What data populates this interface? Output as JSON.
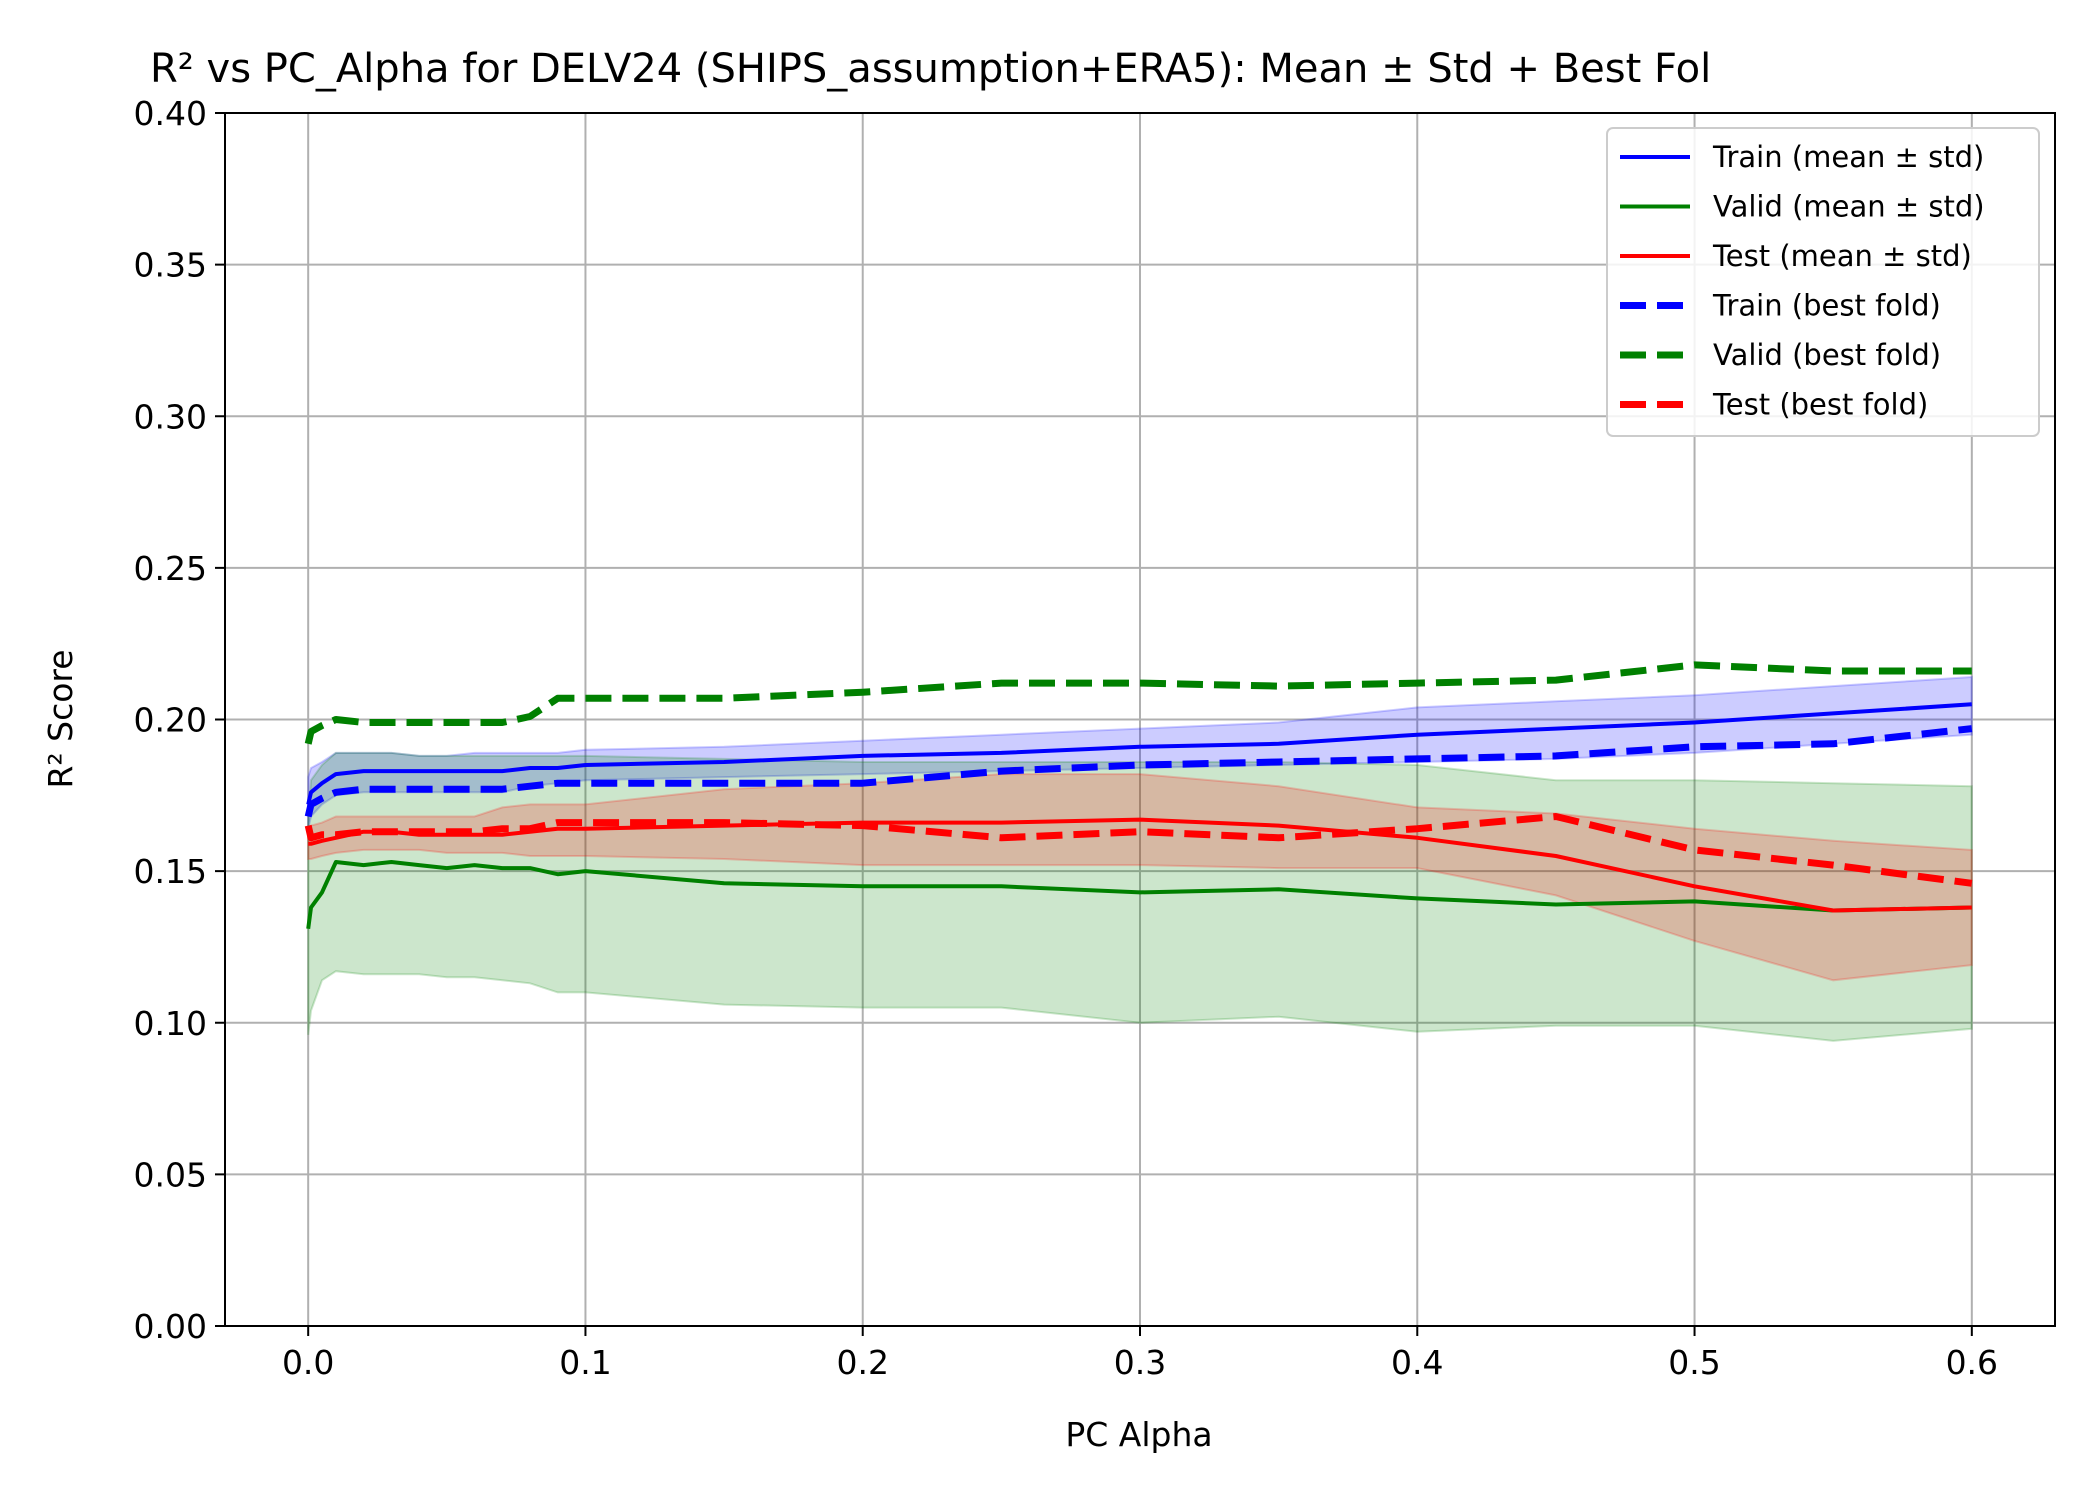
{
  "chart_data": {
    "type": "line",
    "title": "R² vs PC_Alpha for DELV24 (SHIPS_assumption+ERA5): Mean ± Std + Best Fol",
    "xlabel": "PC Alpha",
    "ylabel": "R² Score",
    "xlim": [
      -0.03,
      0.63
    ],
    "ylim": [
      0.0,
      0.4
    ],
    "xticks": [
      0.0,
      0.1,
      0.2,
      0.3,
      0.4,
      0.5,
      0.6
    ],
    "xtick_labels": [
      "0.0",
      "0.1",
      "0.2",
      "0.3",
      "0.4",
      "0.5",
      "0.6"
    ],
    "yticks": [
      0.0,
      0.05,
      0.1,
      0.15,
      0.2,
      0.25,
      0.3,
      0.35,
      0.4
    ],
    "ytick_labels": [
      "0.00",
      "0.05",
      "0.10",
      "0.15",
      "0.20",
      "0.25",
      "0.30",
      "0.35",
      "0.40"
    ],
    "grid": true,
    "legend_position": "top-right",
    "x": [
      0.0,
      0.001,
      0.005,
      0.01,
      0.02,
      0.03,
      0.04,
      0.05,
      0.06,
      0.07,
      0.08,
      0.09,
      0.1,
      0.15,
      0.2,
      0.25,
      0.3,
      0.35,
      0.4,
      0.45,
      0.5,
      0.55,
      0.6
    ],
    "series": [
      {
        "name": "Train (mean ± std)",
        "style": "solid",
        "color": "#0000ff",
        "band_color": "#0000ff",
        "mean": [
          0.172,
          0.176,
          0.179,
          0.182,
          0.183,
          0.183,
          0.183,
          0.183,
          0.183,
          0.183,
          0.184,
          0.184,
          0.185,
          0.186,
          0.188,
          0.189,
          0.191,
          0.192,
          0.195,
          0.197,
          0.199,
          0.202,
          0.205
        ],
        "upper": [
          0.181,
          0.184,
          0.186,
          0.189,
          0.189,
          0.189,
          0.188,
          0.188,
          0.189,
          0.189,
          0.189,
          0.189,
          0.19,
          0.191,
          0.193,
          0.195,
          0.197,
          0.199,
          0.204,
          0.206,
          0.208,
          0.211,
          0.214
        ],
        "lower": [
          0.164,
          0.168,
          0.172,
          0.175,
          0.176,
          0.176,
          0.176,
          0.176,
          0.176,
          0.176,
          0.178,
          0.179,
          0.18,
          0.181,
          0.182,
          0.183,
          0.184,
          0.185,
          0.186,
          0.187,
          0.189,
          0.192,
          0.195
        ]
      },
      {
        "name": "Valid (mean ± std)",
        "style": "solid",
        "color": "#008000",
        "band_color": "#008000",
        "mean": [
          0.131,
          0.138,
          0.143,
          0.153,
          0.152,
          0.153,
          0.152,
          0.151,
          0.152,
          0.151,
          0.151,
          0.149,
          0.15,
          0.146,
          0.145,
          0.145,
          0.143,
          0.144,
          0.141,
          0.139,
          0.14,
          0.137,
          0.138
        ],
        "upper": [
          0.166,
          0.18,
          0.185,
          0.189,
          0.189,
          0.189,
          0.188,
          0.188,
          0.188,
          0.188,
          0.188,
          0.188,
          0.188,
          0.187,
          0.186,
          0.186,
          0.186,
          0.186,
          0.185,
          0.18,
          0.18,
          0.179,
          0.178
        ],
        "lower": [
          0.096,
          0.104,
          0.114,
          0.117,
          0.116,
          0.116,
          0.116,
          0.115,
          0.115,
          0.114,
          0.113,
          0.11,
          0.11,
          0.106,
          0.105,
          0.105,
          0.1,
          0.102,
          0.097,
          0.099,
          0.099,
          0.094,
          0.098
        ]
      },
      {
        "name": "Test (mean ± std)",
        "style": "solid",
        "color": "#ff0000",
        "band_color": "#ff0000",
        "mean": [
          0.159,
          0.159,
          0.16,
          0.161,
          0.163,
          0.163,
          0.162,
          0.162,
          0.162,
          0.162,
          0.163,
          0.164,
          0.164,
          0.165,
          0.166,
          0.166,
          0.167,
          0.165,
          0.161,
          0.155,
          0.145,
          0.137,
          0.138
        ],
        "upper": [
          0.164,
          0.165,
          0.166,
          0.168,
          0.168,
          0.168,
          0.168,
          0.168,
          0.168,
          0.171,
          0.172,
          0.172,
          0.172,
          0.177,
          0.179,
          0.182,
          0.182,
          0.178,
          0.171,
          0.169,
          0.164,
          0.16,
          0.157
        ],
        "lower": [
          0.154,
          0.154,
          0.155,
          0.156,
          0.157,
          0.157,
          0.157,
          0.156,
          0.156,
          0.156,
          0.155,
          0.155,
          0.155,
          0.154,
          0.152,
          0.152,
          0.152,
          0.151,
          0.151,
          0.142,
          0.127,
          0.114,
          0.119
        ]
      },
      {
        "name": "Train (best fold)",
        "style": "dashed",
        "color": "#0000ff",
        "values": [
          0.168,
          0.172,
          0.174,
          0.176,
          0.177,
          0.177,
          0.177,
          0.177,
          0.177,
          0.177,
          0.178,
          0.179,
          0.179,
          0.179,
          0.179,
          0.183,
          0.185,
          0.186,
          0.187,
          0.188,
          0.191,
          0.192,
          0.197
        ]
      },
      {
        "name": "Valid (best fold)",
        "style": "dashed",
        "color": "#008000",
        "values": [
          0.192,
          0.196,
          0.198,
          0.2,
          0.199,
          0.199,
          0.199,
          0.199,
          0.199,
          0.199,
          0.201,
          0.207,
          0.207,
          0.207,
          0.209,
          0.212,
          0.212,
          0.211,
          0.212,
          0.213,
          0.218,
          0.216,
          0.216
        ]
      },
      {
        "name": "Test (best fold)",
        "style": "dashed",
        "color": "#ff0000",
        "values": [
          0.165,
          0.161,
          0.162,
          0.162,
          0.163,
          0.163,
          0.163,
          0.163,
          0.163,
          0.164,
          0.164,
          0.166,
          0.166,
          0.166,
          0.165,
          0.161,
          0.163,
          0.161,
          0.164,
          0.168,
          0.157,
          0.152,
          0.146
        ]
      }
    ]
  }
}
